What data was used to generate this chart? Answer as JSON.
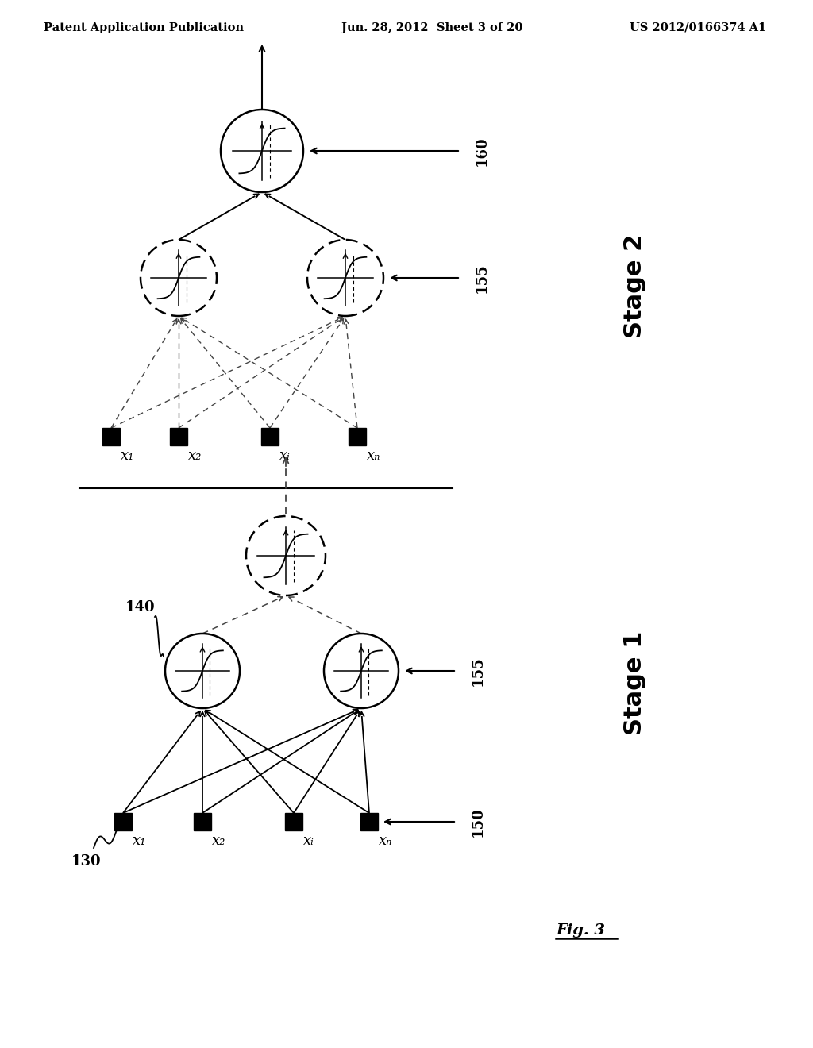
{
  "header_left": "Patent Application Publication",
  "header_center": "Jun. 28, 2012  Sheet 3 of 20",
  "header_right": "US 2012/0166374 A1",
  "fig_label": "Fig. 3",
  "stage2_label": "Stage 2",
  "stage1_label": "Stage 1",
  "label_160": "160",
  "label_155_s2": "155",
  "label_155_s1": "155",
  "label_150": "150",
  "label_140": "140",
  "label_130": "130",
  "input_labels": [
    "x₁",
    "x₂",
    "xᵢ",
    "xₙ"
  ],
  "bg": "#ffffff",
  "black": "#000000",
  "gray": "#666666",
  "darkgray": "#444444"
}
